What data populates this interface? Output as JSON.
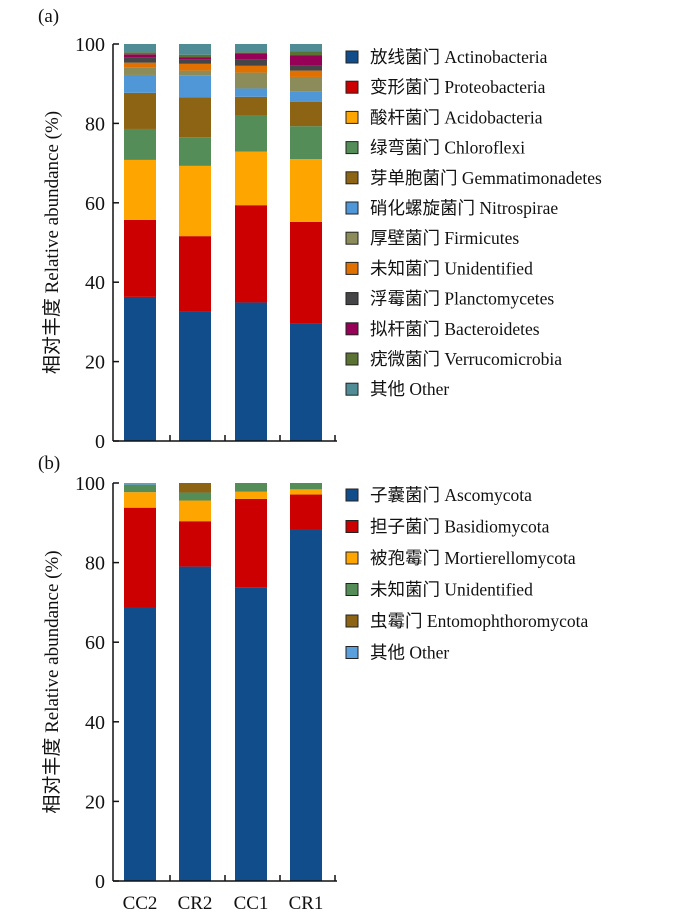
{
  "chart_data": [
    {
      "type": "bar",
      "stacked": true,
      "panel_label": "(a)",
      "title": "",
      "xlabel": "",
      "ylabel": "相对丰度 Relative abundance (%)",
      "ylim": [
        0,
        100
      ],
      "yticks": [
        0,
        20,
        40,
        60,
        80,
        100
      ],
      "show_x_labels": false,
      "grid": false,
      "legend_position": "right",
      "categories": [
        "CC2",
        "CR2",
        "CC1",
        "CR1"
      ],
      "series": [
        {
          "name": "放线菌门 Actinobacteria",
          "color": "#114d8a",
          "values": [
            36.3,
            32.6,
            34.9,
            29.5
          ]
        },
        {
          "name": "变形菌门 Proteobacteria",
          "color": "#cc0000",
          "values": [
            19.4,
            19.0,
            24.5,
            25.7
          ]
        },
        {
          "name": "酸杆菌门 Acidobacteria",
          "color": "#ffa500",
          "values": [
            15.1,
            17.7,
            13.5,
            15.8
          ]
        },
        {
          "name": "绿弯菌门 Chloroflexi",
          "color": "#548d58",
          "values": [
            7.8,
            7.2,
            9.0,
            8.3
          ]
        },
        {
          "name": "芽单胞菌门 Gemmatimonadetes",
          "color": "#8c6414",
          "values": [
            9.1,
            10.1,
            4.8,
            6.1
          ]
        },
        {
          "name": "硝化螺旋菌门 Nitrospirae",
          "color": "#4f97d6",
          "values": [
            4.5,
            5.4,
            2.1,
            2.6
          ]
        },
        {
          "name": "厚壁菌门 Firmicutes",
          "color": "#8c8c5a",
          "values": [
            1.8,
            1.3,
            4.0,
            3.7
          ]
        },
        {
          "name": "未知菌门 Unidentified",
          "color": "#e07000",
          "values": [
            1.3,
            1.7,
            1.7,
            1.6
          ]
        },
        {
          "name": "浮霉菌门 Planctomycetes",
          "color": "#454548",
          "values": [
            1.4,
            1.2,
            1.7,
            1.2
          ]
        },
        {
          "name": "拟杆菌门 Bacteroidetes",
          "color": "#960056",
          "values": [
            0.7,
            0.5,
            1.4,
            2.7
          ]
        },
        {
          "name": "疣微菌门 Verrucomicrobia",
          "color": "#5a7232",
          "values": [
            0.5,
            0.6,
            0.3,
            1.0
          ]
        },
        {
          "name": "其他 Other",
          "color": "#508c96",
          "values": [
            2.1,
            2.7,
            2.1,
            1.8
          ]
        }
      ]
    },
    {
      "type": "bar",
      "stacked": true,
      "panel_label": "(b)",
      "title": "",
      "xlabel": "",
      "ylabel": "相对丰度 Relative abundance (%)",
      "ylim": [
        0,
        100
      ],
      "yticks": [
        0,
        20,
        40,
        60,
        80,
        100
      ],
      "show_x_labels": true,
      "grid": false,
      "legend_position": "right",
      "categories": [
        "CC2",
        "CR2",
        "CC1",
        "CR1"
      ],
      "series": [
        {
          "name": "子囊菌门 Ascomycota",
          "color": "#114d8a",
          "values": [
            68.6,
            79.0,
            73.7,
            88.2
          ]
        },
        {
          "name": "担子菌门 Basidiomycota",
          "color": "#cc0000",
          "values": [
            25.2,
            11.4,
            22.3,
            8.9
          ]
        },
        {
          "name": "被孢霉门 Mortierellomycota",
          "color": "#ffa500",
          "values": [
            3.9,
            5.2,
            1.8,
            1.3
          ]
        },
        {
          "name": "未知菌门 Unidentified",
          "color": "#548d58",
          "values": [
            1.9,
            2.0,
            2.2,
            1.6
          ]
        },
        {
          "name": "虫霉门 Entomophthoromycota",
          "color": "#8c6414",
          "values": [
            0.0,
            2.4,
            0.0,
            0.0
          ]
        },
        {
          "name": "其他 Other",
          "color": "#5aa0dc",
          "values": [
            0.4,
            0.0,
            0.0,
            0.0
          ]
        }
      ]
    }
  ]
}
